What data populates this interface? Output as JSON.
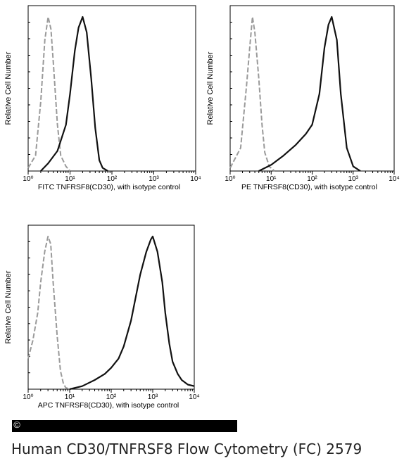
{
  "chart_data": [
    {
      "type": "line",
      "xscale": "log",
      "xlim": [
        1,
        10000
      ],
      "xticks": [
        "10⁰",
        "10¹",
        "10²",
        "10³",
        "10⁴"
      ],
      "xlabel": "FITC TNFRSF8(CD30),  with isotype control",
      "ylabel": "Relative Cell Number",
      "grid": false,
      "series": [
        {
          "style": "dashed",
          "color": "#9a9a9a",
          "x": [
            1.0,
            1.5,
            2.0,
            2.5,
            3.0,
            3.5,
            4.0,
            5.0,
            6.0,
            8.0,
            10.0
          ],
          "y": [
            0.02,
            0.1,
            0.45,
            0.85,
            1.0,
            0.92,
            0.7,
            0.3,
            0.1,
            0.03,
            0.0
          ]
        },
        {
          "style": "solid",
          "color": "#111111",
          "x": [
            2.0,
            3.0,
            5.0,
            8.0,
            10.0,
            13.0,
            16.0,
            20.0,
            25.0,
            32.0,
            40.0,
            50.0,
            60.0,
            80.0
          ],
          "y": [
            0.0,
            0.05,
            0.13,
            0.3,
            0.5,
            0.78,
            0.93,
            1.0,
            0.9,
            0.6,
            0.28,
            0.07,
            0.02,
            0.0
          ]
        }
      ]
    },
    {
      "type": "line",
      "xscale": "log",
      "xlim": [
        1,
        10000
      ],
      "xticks": [
        "10⁰",
        "10¹",
        "10²",
        "10³",
        "10⁴"
      ],
      "xlabel": "PE TNFRSF8(CD30),  with isotype control",
      "ylabel": "Relative Cell Number",
      "grid": false,
      "series": [
        {
          "style": "dashed",
          "color": "#9a9a9a",
          "x": [
            1.0,
            1.8,
            2.5,
            3.0,
            3.5,
            4.0,
            5.0,
            6.0,
            7.0,
            9.0,
            12.0
          ],
          "y": [
            0.02,
            0.15,
            0.55,
            0.8,
            1.0,
            0.9,
            0.6,
            0.3,
            0.12,
            0.03,
            0.0
          ]
        },
        {
          "style": "solid",
          "color": "#111111",
          "x": [
            5.0,
            10.0,
            20.0,
            40.0,
            70.0,
            100.0,
            150.0,
            200.0,
            250.0,
            300.0,
            400.0,
            500.0,
            700.0,
            1000.0,
            1500.0
          ],
          "y": [
            0.0,
            0.04,
            0.1,
            0.17,
            0.24,
            0.3,
            0.5,
            0.8,
            0.95,
            1.0,
            0.85,
            0.5,
            0.15,
            0.03,
            0.0
          ]
        }
      ]
    },
    {
      "type": "line",
      "xscale": "log",
      "xlim": [
        1,
        10000
      ],
      "xticks": [
        "10⁰",
        "10¹",
        "10²",
        "10³",
        "10⁴"
      ],
      "xlabel": "APC  TNFRSF8(CD30), with isotype control",
      "ylabel": "Relative Cell Number",
      "grid": false,
      "series": [
        {
          "style": "dashed",
          "color": "#9a9a9a",
          "x": [
            1.0,
            1.3,
            1.7,
            2.0,
            2.5,
            3.0,
            3.5,
            4.0,
            5.0,
            6.0,
            7.0,
            8.0,
            10.0
          ],
          "y": [
            0.2,
            0.32,
            0.5,
            0.7,
            0.9,
            1.0,
            0.95,
            0.7,
            0.35,
            0.12,
            0.04,
            0.01,
            0.0
          ]
        },
        {
          "style": "solid",
          "color": "#111111",
          "x": [
            10.0,
            20.0,
            40.0,
            70.0,
            100.0,
            150.0,
            200.0,
            300.0,
            500.0,
            700.0,
            900.0,
            1000.0,
            1300.0,
            1700.0,
            2000.0,
            2500.0,
            3000.0,
            4000.0,
            5000.0,
            7000.0,
            10000.0
          ],
          "y": [
            0.0,
            0.02,
            0.06,
            0.1,
            0.14,
            0.2,
            0.28,
            0.45,
            0.75,
            0.9,
            0.98,
            1.0,
            0.9,
            0.7,
            0.5,
            0.3,
            0.18,
            0.1,
            0.06,
            0.03,
            0.02
          ]
        }
      ]
    }
  ],
  "figure_title": "Human CD30/TNFRSF8 Flow Cytometry (FC) 2579",
  "watermark": "©"
}
